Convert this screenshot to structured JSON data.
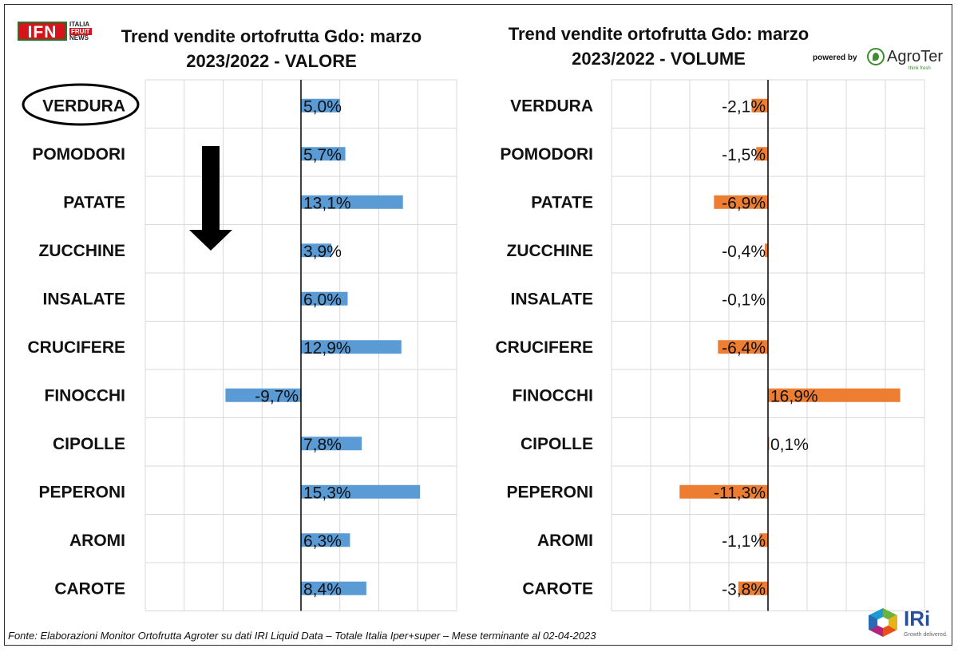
{
  "header": {
    "logo_ifn": "IFN",
    "logo_ifn_lines": [
      "ITALIA",
      "FRUIT",
      "NEWS"
    ],
    "powered_by": "powered by",
    "agroter": "AgroTer",
    "agroter_tagline": "think fresh",
    "iri": "IRi",
    "iri_tagline": "Growth delivered."
  },
  "source_note": "Fonte: Elaborazioni Monitor Ortofrutta Agroter su dati IRI Liquid Data – Totale Italia Iper+super – Mese terminante al 02-04-2023",
  "colors": {
    "valore_bar": "#5b9bd5",
    "volume_bar": "#ed7d31",
    "grid": "#d9d9d9",
    "axis": "#000000"
  },
  "annotations": {
    "highlight_category": "VERDURA",
    "arrow": "down-arrow"
  },
  "chart_data": [
    {
      "type": "bar",
      "orientation": "horizontal",
      "title_lines": [
        "Trend vendite ortofrutta Gdo: marzo",
        "2023/2022 - VALORE"
      ],
      "categories": [
        "VERDURA",
        "POMODORI",
        "PATATE",
        "ZUCCHINE",
        "INSALATE",
        "CRUCIFERE",
        "FINOCCHI",
        "CIPOLLE",
        "PEPERONI",
        "AROMI",
        "CAROTE"
      ],
      "values": [
        5.0,
        5.7,
        13.1,
        3.9,
        6.0,
        12.9,
        -9.7,
        7.8,
        15.3,
        6.3,
        8.4
      ],
      "value_labels": [
        "5,0%",
        "5,7%",
        "13,1%",
        "3,9%",
        "6,0%",
        "12,9%",
        "-9,7%",
        "7,8%",
        "15,3%",
        "6,3%",
        "8,4%"
      ],
      "xlim": [
        -20,
        20
      ],
      "gridline_step": 10,
      "color": "#5b9bd5"
    },
    {
      "type": "bar",
      "orientation": "horizontal",
      "title_lines": [
        "Trend vendite ortofrutta Gdo: marzo",
        "2023/2022 - VOLUME"
      ],
      "categories": [
        "VERDURA",
        "POMODORI",
        "PATATE",
        "ZUCCHINE",
        "INSALATE",
        "CRUCIFERE",
        "FINOCCHI",
        "CIPOLLE",
        "PEPERONI",
        "AROMI",
        "CAROTE"
      ],
      "values": [
        -2.1,
        -1.5,
        -6.9,
        -0.4,
        -0.1,
        -6.4,
        16.9,
        0.1,
        -11.3,
        -1.1,
        -3.8
      ],
      "value_labels": [
        "-2,1%",
        "-1,5%",
        "-6,9%",
        "-0,4%",
        "-0,1%",
        "-6,4%",
        "16,9%",
        "0,1%",
        "-11,3%",
        "-1,1%",
        "-3,8%"
      ],
      "xlim": [
        -20,
        20
      ],
      "gridline_step": 10,
      "color": "#ed7d31"
    }
  ]
}
